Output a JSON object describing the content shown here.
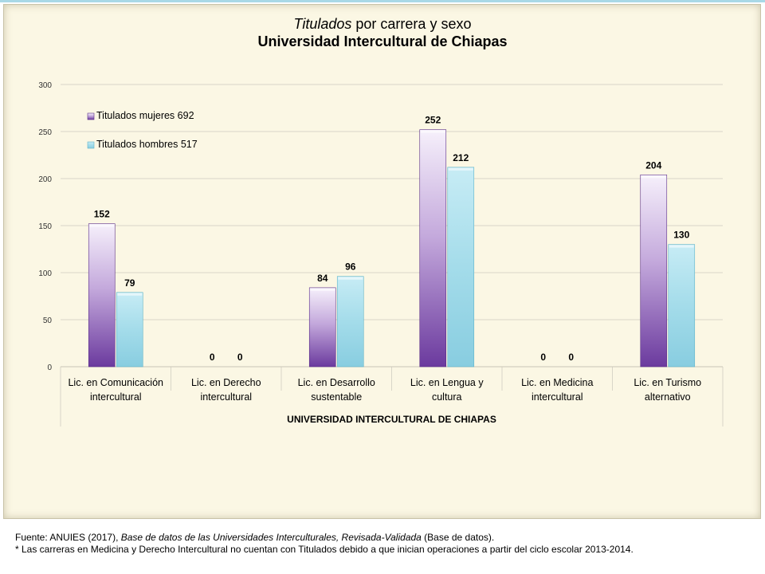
{
  "title": {
    "italic_part": "Titulados",
    "rest": " por carrera y sexo",
    "subtitle": "Universidad Intercultural de Chiapas"
  },
  "chart_data": {
    "type": "bar",
    "categories": [
      [
        "Lic. en Comunicación",
        "intercultural"
      ],
      [
        "Lic. en Derecho",
        "intercultural"
      ],
      [
        "Lic. en Desarrollo",
        "sustentable"
      ],
      [
        "Lic. en Lengua y",
        "cultura"
      ],
      [
        "Lic. en Medicina",
        "intercultural"
      ],
      [
        "Lic. en Turismo",
        "alternativo"
      ]
    ],
    "series": [
      {
        "name": "Titulados mujeres 692",
        "values": [
          152,
          0,
          84,
          252,
          0,
          204
        ],
        "color": "#7a4aa8"
      },
      {
        "name": "Titulados hombres 517",
        "values": [
          79,
          0,
          96,
          212,
          0,
          130
        ],
        "color": "#9fd6e6"
      }
    ],
    "xlabel": "UNIVERSIDAD INTERCULTURAL DE CHIAPAS",
    "ylabel": "",
    "ylim": [
      0,
      300
    ],
    "yticks": [
      0,
      50,
      100,
      150,
      200,
      250,
      300
    ],
    "grid": true,
    "legend_position": "top-left"
  },
  "source": {
    "prefix": "Fuente: ANUIES (2017), ",
    "title": "Base de datos de las Universidades  Interculturales, Revisada-Validada",
    "suffix": "  (Base de datos).",
    "note": "* Las carreras en Medicina  y Derecho  Intercultural no cuentan con Titulados debido  a que inician operaciones  a partir del ciclo escolar 2013-2014."
  }
}
